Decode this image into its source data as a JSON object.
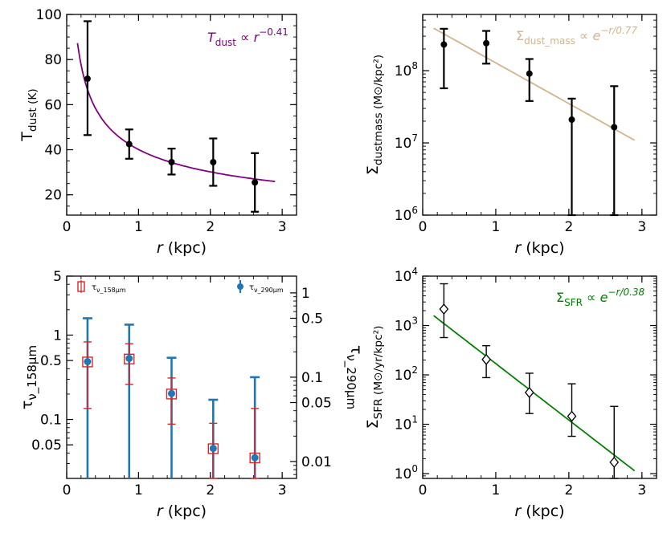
{
  "chart_data": [
    {
      "id": "tdust",
      "type": "scatter",
      "xlabel": "r (kpc)",
      "ylabel": "T_dust (K)",
      "xlim": [
        0,
        3.2
      ],
      "ylim": [
        11,
        100
      ],
      "xticks": [
        0,
        1,
        2,
        3
      ],
      "yticks": [
        20,
        40,
        60,
        80,
        100
      ],
      "points": [
        {
          "x": 0.29,
          "y": 71.5,
          "lo": 46.5,
          "hi": 97
        },
        {
          "x": 0.87,
          "y": 42.5,
          "lo": 36,
          "hi": 49
        },
        {
          "x": 1.46,
          "y": 34.5,
          "lo": 29,
          "hi": 40.5
        },
        {
          "x": 2.04,
          "y": 34.5,
          "lo": 24,
          "hi": 45
        },
        {
          "x": 2.62,
          "y": 25.5,
          "lo": 12.5,
          "hi": 38.5
        }
      ],
      "fit": {
        "label": "T_dust ∝ r^−0.41",
        "color": "#800080",
        "x_range": [
          0.15,
          2.9
        ],
        "curve": "power",
        "amp": 40.1,
        "exp": -0.41
      },
      "legend_position": "top-right"
    },
    {
      "id": "dustmass",
      "type": "scatter",
      "xlabel": "r (kpc)",
      "ylabel": "Σ_dust_mass (M_⊙/kpc²)",
      "xlim": [
        0,
        3.2
      ],
      "ylim": [
        1000000,
        600000000
      ],
      "yscale": "log",
      "xticks": [
        0,
        1,
        2,
        3
      ],
      "yticks": [
        1000000,
        10000000,
        100000000
      ],
      "points": [
        {
          "x": 0.29,
          "y": 230000000,
          "lo": 57000000,
          "hi": 380000000
        },
        {
          "x": 0.87,
          "y": 240000000,
          "lo": 125000000,
          "hi": 355000000
        },
        {
          "x": 1.46,
          "y": 91000000,
          "lo": 38000000,
          "hi": 145000000
        },
        {
          "x": 2.04,
          "y": 21000000,
          "lo": 1000000,
          "hi": 41000000
        },
        {
          "x": 2.62,
          "y": 16500000,
          "lo": 1000000,
          "hi": 61000000
        }
      ],
      "fit": {
        "label": "Σ_dust_mass ∝ e^−r/0.77",
        "color": "#d2b48c",
        "x_range": [
          0.15,
          2.9
        ],
        "curve": "exp",
        "amp": 470000000,
        "scale": 0.77
      },
      "legend_position": "top-right"
    },
    {
      "id": "tau",
      "type": "scatter",
      "xlabel": "r (kpc)",
      "ylabel": "τ_ν_158μm",
      "y2label": "τ_ν_290μm",
      "xlim": [
        0,
        3.2
      ],
      "ylim": [
        0.02,
        5
      ],
      "yscale": "log",
      "y2lim": [
        0.0063,
        1.58
      ],
      "xticks": [
        0,
        1,
        2,
        3
      ],
      "yticks": [
        0.05,
        0.1,
        0.5,
        1,
        5
      ],
      "y2ticks": [
        0.01,
        0.05,
        0.1,
        0.5,
        1
      ],
      "tau158": {
        "name": "τ_ν_158μm",
        "color": "#d62728",
        "points": [
          {
            "x": 0.29,
            "y": 0.48,
            "lo": 0.135,
            "hi": 0.83
          },
          {
            "x": 0.87,
            "y": 0.52,
            "lo": 0.26,
            "hi": 0.79
          },
          {
            "x": 1.46,
            "y": 0.2,
            "lo": 0.088,
            "hi": 0.31
          },
          {
            "x": 2.04,
            "y": 0.045,
            "lo": 0.02,
            "hi": 0.09
          },
          {
            "x": 2.62,
            "y": 0.035,
            "lo": 0.02,
            "hi": 0.135
          }
        ]
      },
      "tau290": {
        "name": "τ_ν_290μm",
        "color": "#1f77b4",
        "points": [
          {
            "x": 0.29,
            "y": 0.153,
            "lo": 0.0063,
            "hi": 0.5
          },
          {
            "x": 0.87,
            "y": 0.167,
            "lo": 0.0063,
            "hi": 0.42
          },
          {
            "x": 1.46,
            "y": 0.064,
            "lo": 0.0063,
            "hi": 0.17
          },
          {
            "x": 2.04,
            "y": 0.0143,
            "lo": 0.0063,
            "hi": 0.054
          },
          {
            "x": 2.62,
            "y": 0.0111,
            "lo": 0.0063,
            "hi": 0.1
          }
        ]
      },
      "legend": [
        {
          "label": "τ_ν_158μm",
          "position": "top-left"
        },
        {
          "label": "τ_ν_290μm",
          "position": "top-right"
        }
      ]
    },
    {
      "id": "sfr",
      "type": "scatter",
      "xlabel": "r (kpc)",
      "ylabel": "Σ_SFR (M_⊙/yr/kpc²)",
      "xlim": [
        0,
        3.2
      ],
      "ylim": [
        0.8,
        10000
      ],
      "yscale": "log",
      "xticks": [
        0,
        1,
        2,
        3
      ],
      "yticks": [
        1,
        10,
        100,
        1000,
        10000
      ],
      "points": [
        {
          "x": 0.29,
          "y": 2150,
          "lo": 570,
          "hi": 7000
        },
        {
          "x": 0.87,
          "y": 205,
          "lo": 88,
          "hi": 390
        },
        {
          "x": 1.46,
          "y": 44,
          "lo": 16.5,
          "hi": 108
        },
        {
          "x": 2.04,
          "y": 14.5,
          "lo": 5.7,
          "hi": 66
        },
        {
          "x": 2.62,
          "y": 1.7,
          "lo": 0.8,
          "hi": 23
        }
      ],
      "fit": {
        "label": "Σ_SFR ∝ e^−r/0.38",
        "color": "#008000",
        "x_range": [
          0.15,
          2.9
        ],
        "curve": "exp",
        "amp": 2350,
        "scale": 0.38
      },
      "legend_position": "top-right"
    }
  ]
}
